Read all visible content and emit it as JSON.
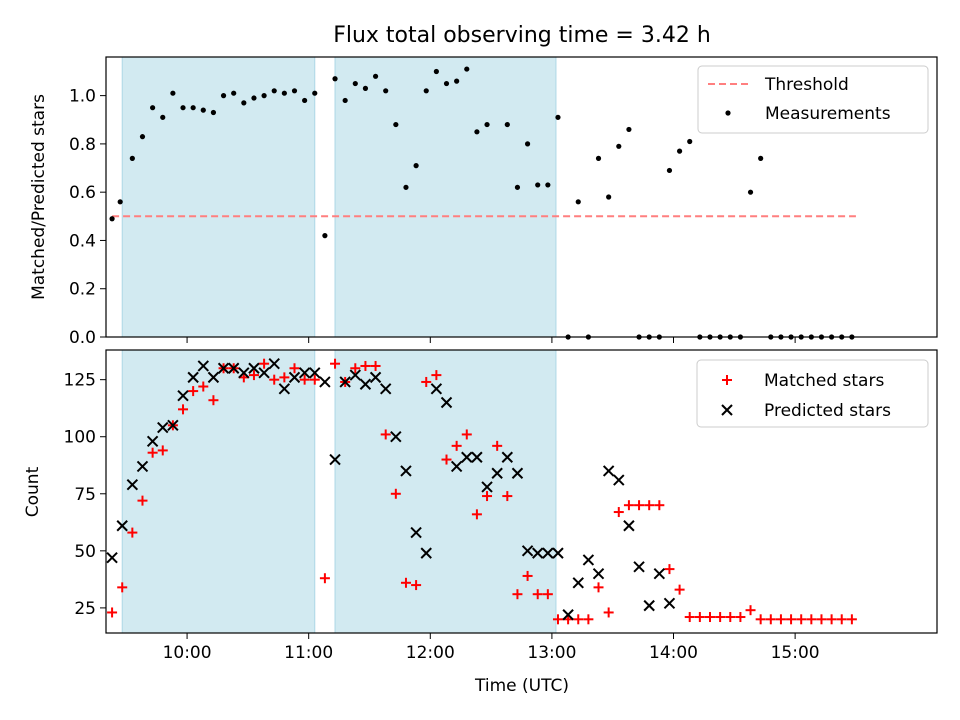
{
  "figure": {
    "title": "Flux total observing time = 3.42 h",
    "xlabel": "Time (UTC)",
    "x_tick_labels": [
      "10:00",
      "11:00",
      "12:00",
      "13:00",
      "14:00",
      "15:00"
    ]
  },
  "colors": {
    "span_fill": "#add8e6",
    "threshold": "#ff7f7f",
    "measurement": "#000000",
    "matched": "#ff0000",
    "predicted": "#000000"
  },
  "chart_data": [
    {
      "type": "scatter",
      "ylabel": "Matched/Predicted stars",
      "xlim": [
        "09:20",
        "16:10"
      ],
      "ylim": [
        0.0,
        1.16
      ],
      "y_ticks": [
        0.0,
        0.2,
        0.4,
        0.6,
        0.8,
        1.0
      ],
      "y_tick_labels": [
        "0.0",
        "0.2",
        "0.4",
        "0.6",
        "0.8",
        "1.0"
      ],
      "legend": {
        "location": "top-right",
        "entries": [
          "Threshold",
          "Measurements"
        ]
      },
      "highlight_spans": [
        [
          "09:28",
          "11:03"
        ],
        [
          "11:13",
          "13:02"
        ]
      ],
      "threshold": {
        "name": "Threshold",
        "value": 0.5,
        "x_range": [
          "09:23",
          "15:30"
        ]
      },
      "series": [
        {
          "name": "Measurements",
          "points": [
            [
              "09:23",
              0.49
            ],
            [
              "09:27",
              0.56
            ],
            [
              "09:33",
              0.74
            ],
            [
              "09:38",
              0.83
            ],
            [
              "09:43",
              0.95
            ],
            [
              "09:48",
              0.91
            ],
            [
              "09:53",
              1.01
            ],
            [
              "09:58",
              0.95
            ],
            [
              "10:03",
              0.95
            ],
            [
              "10:08",
              0.94
            ],
            [
              "10:13",
              0.93
            ],
            [
              "10:18",
              1.0
            ],
            [
              "10:23",
              1.01
            ],
            [
              "10:28",
              0.97
            ],
            [
              "10:33",
              0.99
            ],
            [
              "10:38",
              1.0
            ],
            [
              "10:43",
              1.02
            ],
            [
              "10:48",
              1.01
            ],
            [
              "10:53",
              1.02
            ],
            [
              "10:58",
              0.98
            ],
            [
              "11:03",
              1.01
            ],
            [
              "11:08",
              0.42
            ],
            [
              "11:13",
              1.07
            ],
            [
              "11:18",
              0.98
            ],
            [
              "11:23",
              1.05
            ],
            [
              "11:28",
              1.03
            ],
            [
              "11:33",
              1.08
            ],
            [
              "11:38",
              1.02
            ],
            [
              "11:43",
              0.88
            ],
            [
              "11:48",
              0.62
            ],
            [
              "11:53",
              0.71
            ],
            [
              "11:58",
              1.02
            ],
            [
              "12:03",
              1.1
            ],
            [
              "12:08",
              1.05
            ],
            [
              "12:13",
              1.06
            ],
            [
              "12:18",
              1.11
            ],
            [
              "12:23",
              0.85
            ],
            [
              "12:28",
              0.88
            ],
            [
              "12:38",
              0.88
            ],
            [
              "12:43",
              0.62
            ],
            [
              "12:48",
              0.8
            ],
            [
              "12:53",
              0.63
            ],
            [
              "12:58",
              0.63
            ],
            [
              "13:03",
              0.91
            ],
            [
              "13:08",
              0.0
            ],
            [
              "13:13",
              0.56
            ],
            [
              "13:18",
              0.0
            ],
            [
              "13:23",
              0.74
            ],
            [
              "13:28",
              0.58
            ],
            [
              "13:33",
              0.79
            ],
            [
              "13:38",
              0.86
            ],
            [
              "13:43",
              0.0
            ],
            [
              "13:48",
              0.0
            ],
            [
              "13:53",
              0.0
            ],
            [
              "13:58",
              0.69
            ],
            [
              "14:03",
              0.77
            ],
            [
              "14:08",
              0.81
            ],
            [
              "14:13",
              0.0
            ],
            [
              "14:18",
              0.0
            ],
            [
              "14:23",
              0.0
            ],
            [
              "14:28",
              0.0
            ],
            [
              "14:33",
              0.0
            ],
            [
              "14:38",
              0.6
            ],
            [
              "14:43",
              0.74
            ],
            [
              "14:48",
              0.0
            ],
            [
              "14:53",
              0.0
            ],
            [
              "14:58",
              0.0
            ],
            [
              "15:03",
              0.0
            ],
            [
              "15:08",
              0.0
            ],
            [
              "15:13",
              0.0
            ],
            [
              "15:18",
              0.0
            ],
            [
              "15:23",
              0.0
            ],
            [
              "15:28",
              0.0
            ]
          ]
        }
      ]
    },
    {
      "type": "scatter",
      "ylabel": "Count",
      "xlim": [
        "09:20",
        "16:10"
      ],
      "ylim": [
        14,
        138
      ],
      "y_ticks": [
        25,
        50,
        75,
        100,
        125
      ],
      "y_tick_labels": [
        "25",
        "50",
        "75",
        "100",
        "125"
      ],
      "legend": {
        "location": "top-right",
        "entries": [
          "Matched stars",
          "Predicted stars"
        ]
      },
      "highlight_spans": [
        [
          "09:28",
          "11:03"
        ],
        [
          "11:13",
          "13:02"
        ]
      ],
      "series": [
        {
          "name": "Matched stars",
          "marker": "plus",
          "points": [
            [
              "09:23",
              23
            ],
            [
              "09:28",
              34
            ],
            [
              "09:33",
              58
            ],
            [
              "09:38",
              72
            ],
            [
              "09:43",
              93
            ],
            [
              "09:48",
              94
            ],
            [
              "09:53",
              105
            ],
            [
              "09:58",
              112
            ],
            [
              "10:03",
              120
            ],
            [
              "10:08",
              122
            ],
            [
              "10:13",
              116
            ],
            [
              "10:18",
              130
            ],
            [
              "10:23",
              130
            ],
            [
              "10:28",
              126
            ],
            [
              "10:33",
              127
            ],
            [
              "10:38",
              132
            ],
            [
              "10:43",
              125
            ],
            [
              "10:48",
              126
            ],
            [
              "10:53",
              130
            ],
            [
              "10:58",
              125
            ],
            [
              "11:03",
              125
            ],
            [
              "11:08",
              38
            ],
            [
              "11:13",
              132
            ],
            [
              "11:18",
              124
            ],
            [
              "11:23",
              130
            ],
            [
              "11:28",
              131
            ],
            [
              "11:33",
              131
            ],
            [
              "11:38",
              101
            ],
            [
              "11:43",
              75
            ],
            [
              "11:48",
              36
            ],
            [
              "11:53",
              35
            ],
            [
              "11:58",
              124
            ],
            [
              "12:03",
              127
            ],
            [
              "12:08",
              90
            ],
            [
              "12:13",
              96
            ],
            [
              "12:18",
              101
            ],
            [
              "12:23",
              66
            ],
            [
              "12:28",
              74
            ],
            [
              "12:33",
              96
            ],
            [
              "12:38",
              74
            ],
            [
              "12:43",
              31
            ],
            [
              "12:48",
              39
            ],
            [
              "12:53",
              31
            ],
            [
              "12:58",
              31
            ],
            [
              "13:03",
              20
            ],
            [
              "13:08",
              20
            ],
            [
              "13:13",
              20
            ],
            [
              "13:18",
              20
            ],
            [
              "13:23",
              34
            ],
            [
              "13:28",
              23
            ],
            [
              "13:33",
              67
            ],
            [
              "13:38",
              70
            ],
            [
              "13:43",
              70
            ],
            [
              "13:48",
              70
            ],
            [
              "13:53",
              70
            ],
            [
              "13:58",
              42
            ],
            [
              "14:03",
              33
            ],
            [
              "14:08",
              21
            ],
            [
              "14:13",
              21
            ],
            [
              "14:18",
              21
            ],
            [
              "14:23",
              21
            ],
            [
              "14:28",
              21
            ],
            [
              "14:33",
              21
            ],
            [
              "14:38",
              24
            ],
            [
              "14:43",
              20
            ],
            [
              "14:48",
              20
            ],
            [
              "14:53",
              20
            ],
            [
              "14:58",
              20
            ],
            [
              "15:03",
              20
            ],
            [
              "15:08",
              20
            ],
            [
              "15:13",
              20
            ],
            [
              "15:18",
              20
            ],
            [
              "15:23",
              20
            ],
            [
              "15:28",
              20
            ]
          ]
        },
        {
          "name": "Predicted stars",
          "marker": "x",
          "points": [
            [
              "09:23",
              47
            ],
            [
              "09:28",
              61
            ],
            [
              "09:33",
              79
            ],
            [
              "09:38",
              87
            ],
            [
              "09:43",
              98
            ],
            [
              "09:48",
              104
            ],
            [
              "09:53",
              105
            ],
            [
              "09:58",
              118
            ],
            [
              "10:03",
              126
            ],
            [
              "10:08",
              131
            ],
            [
              "10:13",
              126
            ],
            [
              "10:18",
              130
            ],
            [
              "10:23",
              130
            ],
            [
              "10:28",
              128
            ],
            [
              "10:33",
              130
            ],
            [
              "10:38",
              128
            ],
            [
              "10:43",
              132
            ],
            [
              "10:48",
              121
            ],
            [
              "10:53",
              126
            ],
            [
              "10:58",
              128
            ],
            [
              "11:03",
              128
            ],
            [
              "11:08",
              124
            ],
            [
              "11:13",
              90
            ],
            [
              "11:18",
              124
            ],
            [
              "11:23",
              127
            ],
            [
              "11:28",
              123
            ],
            [
              "11:33",
              126
            ],
            [
              "11:38",
              121
            ],
            [
              "11:43",
              100
            ],
            [
              "11:48",
              85
            ],
            [
              "11:53",
              58
            ],
            [
              "11:58",
              49
            ],
            [
              "12:03",
              121
            ],
            [
              "12:08",
              115
            ],
            [
              "12:13",
              87
            ],
            [
              "12:18",
              91
            ],
            [
              "12:23",
              91
            ],
            [
              "12:28",
              78
            ],
            [
              "12:33",
              84
            ],
            [
              "12:38",
              91
            ],
            [
              "12:43",
              84
            ],
            [
              "12:48",
              50
            ],
            [
              "12:53",
              49
            ],
            [
              "12:58",
              49
            ],
            [
              "13:03",
              49
            ],
            [
              "13:08",
              22
            ],
            [
              "13:13",
              36
            ],
            [
              "13:18",
              46
            ],
            [
              "13:23",
              40
            ],
            [
              "13:28",
              85
            ],
            [
              "13:33",
              81
            ],
            [
              "13:38",
              61
            ],
            [
              "13:43",
              43
            ],
            [
              "13:48",
              26
            ],
            [
              "13:53",
              40
            ],
            [
              "13:58",
              27
            ]
          ]
        }
      ]
    }
  ]
}
